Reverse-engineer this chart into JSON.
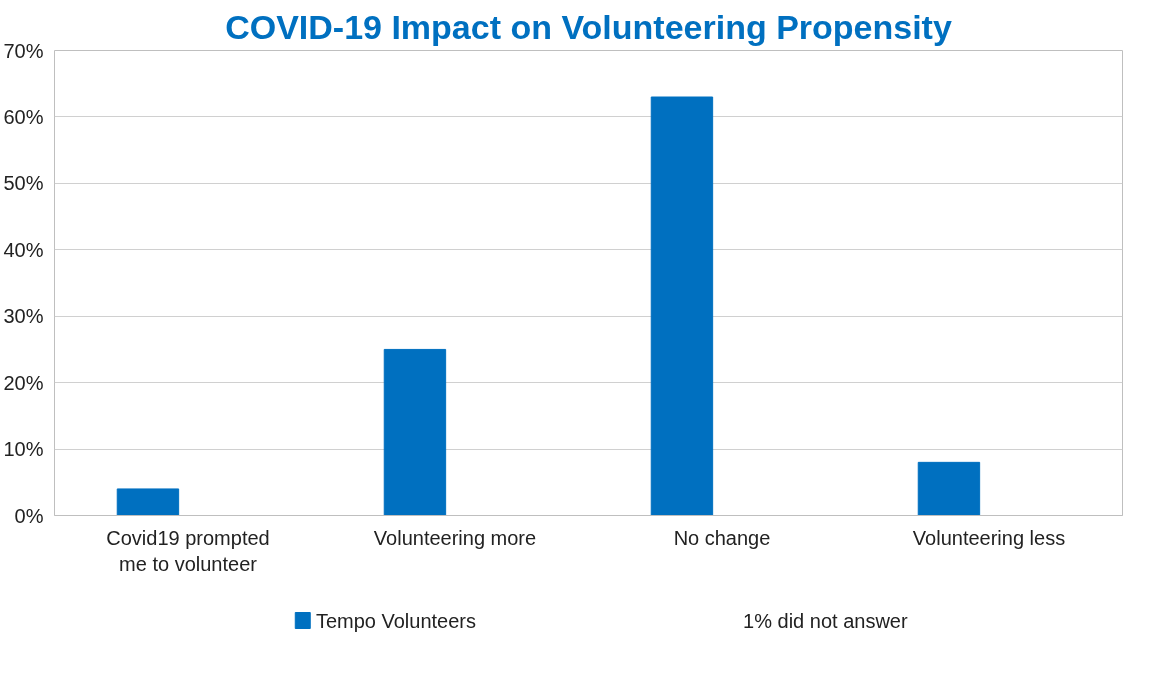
{
  "chart_data": {
    "type": "bar",
    "title": "COVID-19 Impact on Volunteering Propensity",
    "categories": [
      "Covid19 prompted me to volunteer",
      "Volunteering more",
      "No change",
      "Volunteering less"
    ],
    "series": [
      {
        "name": "Tempo Volunteers",
        "color": "#0070c0",
        "values": [
          4,
          25,
          63,
          8
        ]
      }
    ],
    "ylim": [
      0,
      70
    ],
    "yticks": [
      {
        "value": 0,
        "label": "0%"
      },
      {
        "value": 10,
        "label": "10%"
      },
      {
        "value": 20,
        "label": "20%"
      },
      {
        "value": 30,
        "label": "30%"
      },
      {
        "value": 40,
        "label": "40%"
      },
      {
        "value": 50,
        "label": "50%"
      },
      {
        "value": 60,
        "label": "60%"
      },
      {
        "value": 70,
        "label": "70%"
      }
    ],
    "grid": "y",
    "legend": "bottom",
    "annotations": [
      "1% did not answer"
    ]
  }
}
